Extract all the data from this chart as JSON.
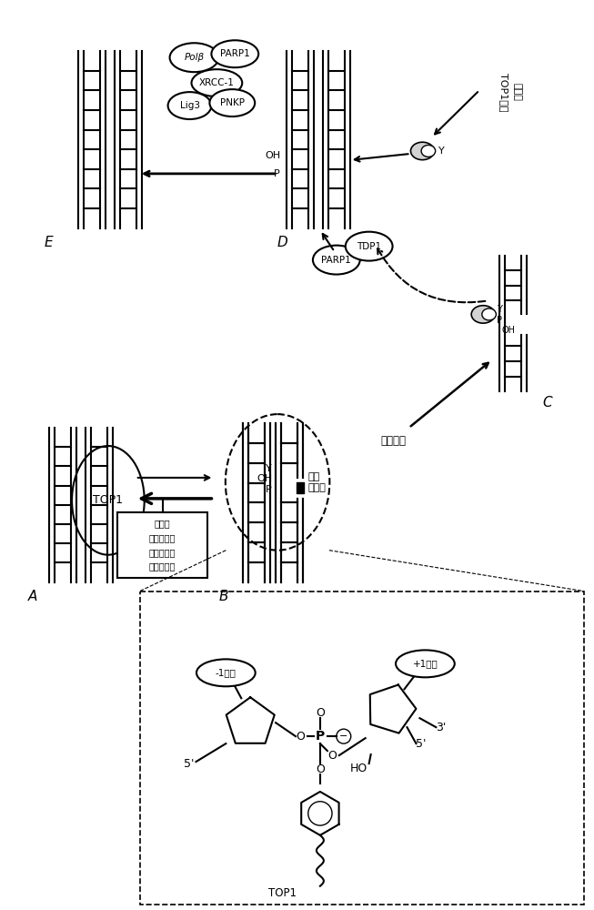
{
  "bg_color": "#ffffff",
  "line_color": "#000000",
  "labels": {
    "A": "A",
    "B": "B",
    "C": "C",
    "D": "D",
    "E": "E",
    "TOP1": "TOP1",
    "cleavage_complex": "切割\n复合物",
    "protein_hydrolysis": "蛋白水解",
    "box_line1": "喜树碱",
    "box_line2": "拓扑替等碱",
    "box_line3": "贝洛替等碱",
    "box_line4": "咀啦替等碱",
    "TOP1_peptide_line1": "TOP1衍生",
    "TOP1_peptide_line2": "的多肽",
    "PARP1": "PARP1",
    "TDP1": "TDP1",
    "Lig3": "Lig3",
    "XRCC1": "XRCC-1",
    "PolB": "Polβ",
    "PNKP": "PNKP",
    "minus1_base": "-1碱基",
    "plus1_base": "+1碱基",
    "OH": "OH",
    "P": "P",
    "Y": "Y",
    "five_prime": "5'",
    "three_prime": "3'",
    "HO": "HO"
  }
}
